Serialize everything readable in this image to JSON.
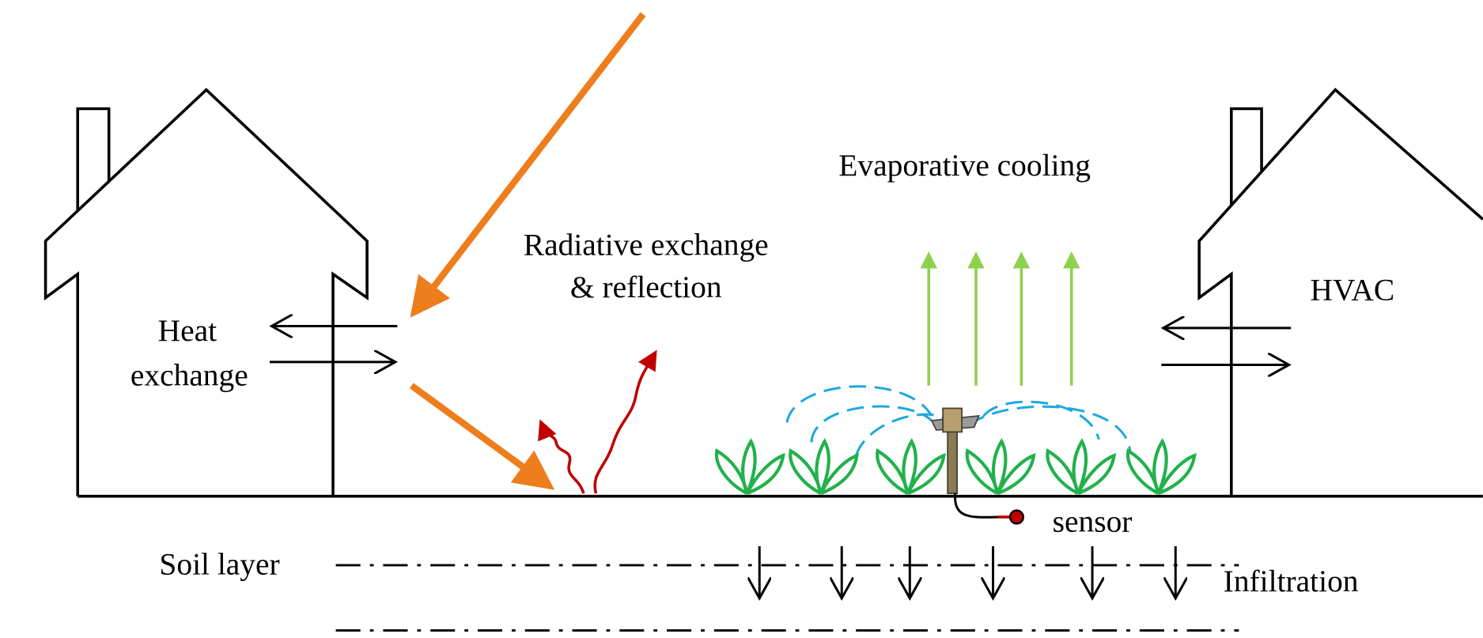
{
  "labels": {
    "evaporative_cooling": "Evaporative cooling",
    "radiative": [
      "Radiative exchange",
      "& reflection"
    ],
    "heat_exchange": [
      "Heat",
      "exchange"
    ],
    "hvac": "HVAC",
    "sensor": "sensor",
    "soil_layer": "Soil layer",
    "infiltration": "Infiltration"
  }
}
